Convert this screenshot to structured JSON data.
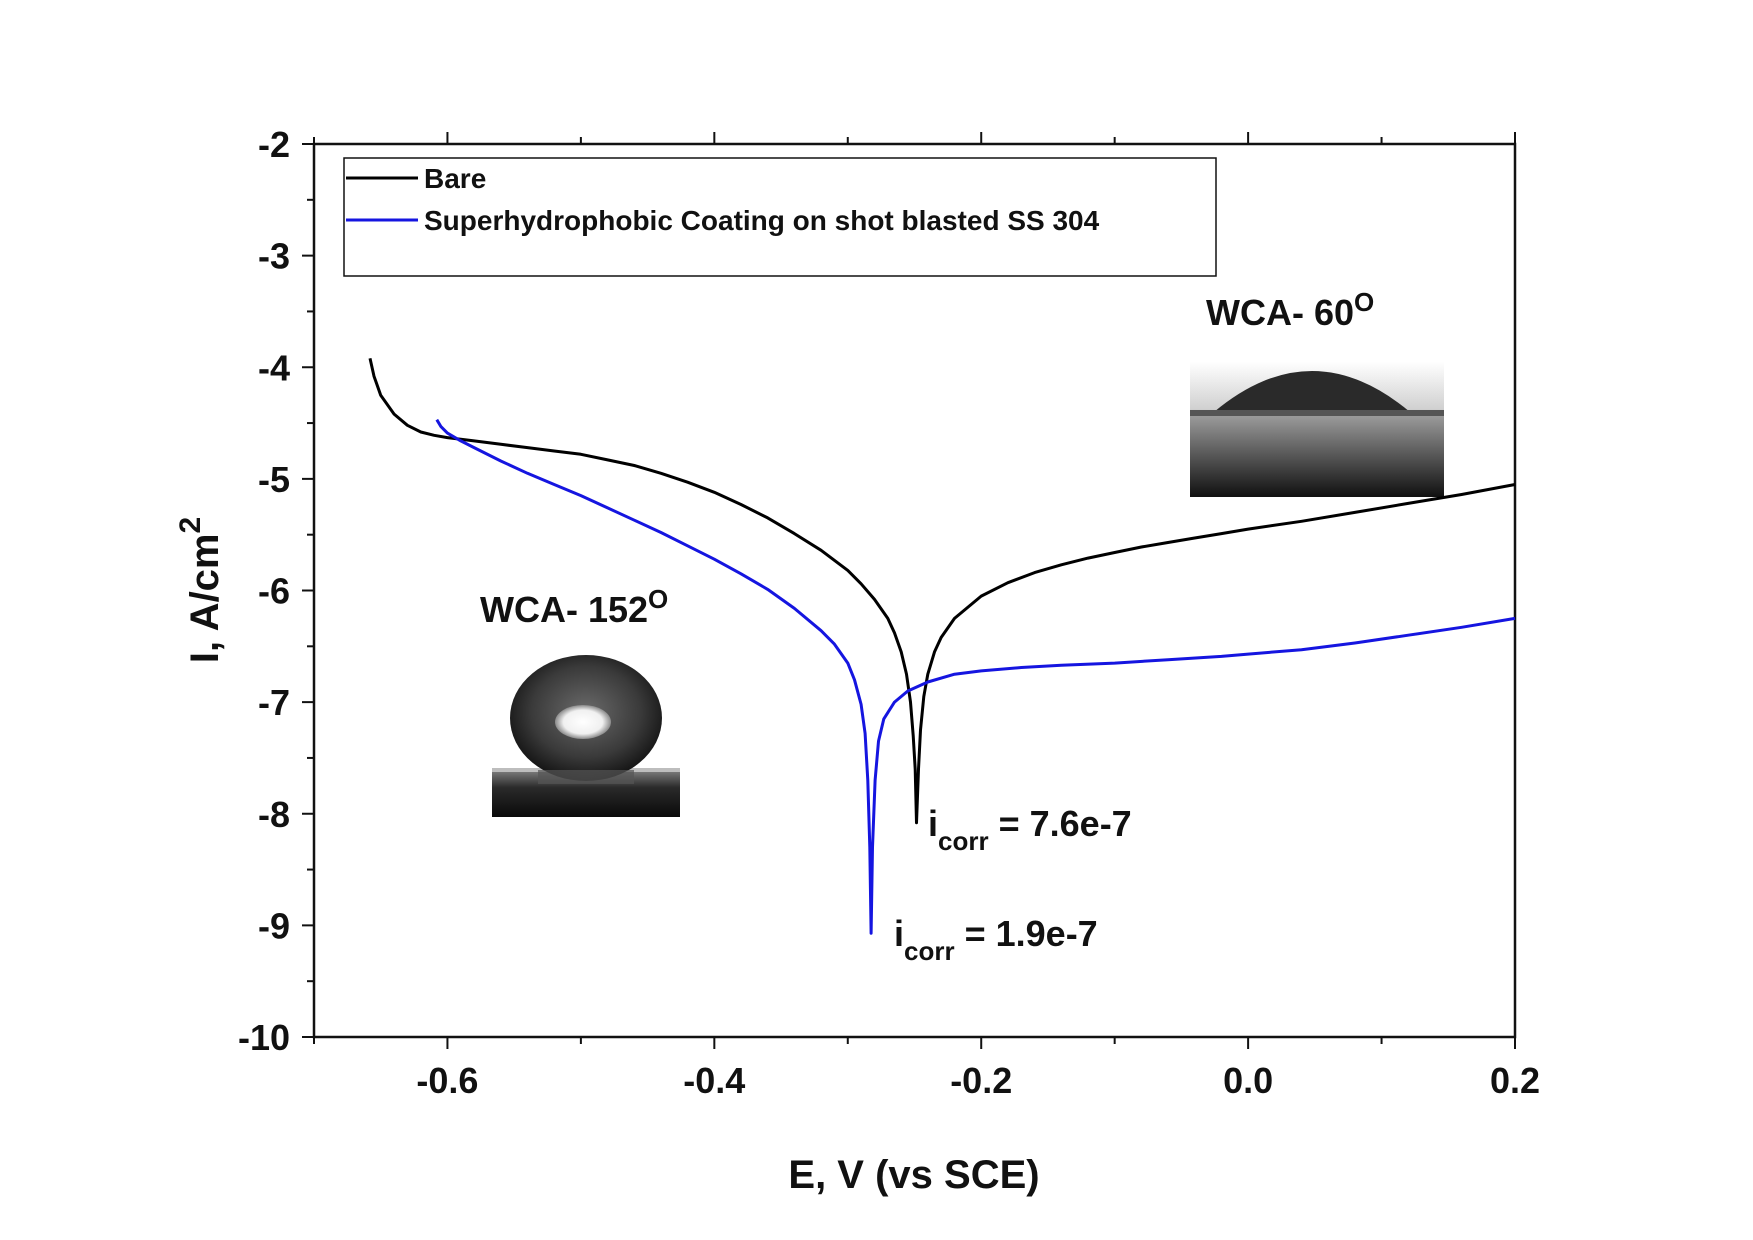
{
  "chart_data": {
    "type": "line",
    "xlabel": "E, V (vs SCE)",
    "ylabel_main": "I, A/cm",
    "ylabel_sup": "2",
    "xlim": [
      -0.7,
      0.2
    ],
    "ylim": [
      -10,
      -2
    ],
    "x_ticks": [
      -0.6,
      -0.4,
      -0.2,
      0.0,
      0.2
    ],
    "x_tick_labels": [
      "-0.6",
      "-0.4",
      "-0.2",
      "0.0",
      "0.2"
    ],
    "y_ticks": [
      -10,
      -9,
      -8,
      -7,
      -6,
      -5,
      -4,
      -3,
      -2
    ],
    "y_tick_labels": [
      "-10",
      "-9",
      "-8",
      "-7",
      "-6",
      "-5",
      "-4",
      "-3",
      "-2"
    ],
    "grid": false,
    "legend_position": "top-left",
    "series": [
      {
        "name": "Bare",
        "color": "#000000",
        "points": [
          [
            -0.658,
            -3.92
          ],
          [
            -0.655,
            -4.08
          ],
          [
            -0.65,
            -4.25
          ],
          [
            -0.64,
            -4.42
          ],
          [
            -0.63,
            -4.52
          ],
          [
            -0.62,
            -4.58
          ],
          [
            -0.61,
            -4.61
          ],
          [
            -0.6,
            -4.63
          ],
          [
            -0.58,
            -4.66
          ],
          [
            -0.56,
            -4.69
          ],
          [
            -0.54,
            -4.72
          ],
          [
            -0.52,
            -4.75
          ],
          [
            -0.5,
            -4.78
          ],
          [
            -0.48,
            -4.83
          ],
          [
            -0.46,
            -4.88
          ],
          [
            -0.44,
            -4.95
          ],
          [
            -0.42,
            -5.03
          ],
          [
            -0.4,
            -5.12
          ],
          [
            -0.38,
            -5.23
          ],
          [
            -0.36,
            -5.35
          ],
          [
            -0.34,
            -5.49
          ],
          [
            -0.32,
            -5.64
          ],
          [
            -0.3,
            -5.82
          ],
          [
            -0.29,
            -5.94
          ],
          [
            -0.28,
            -6.08
          ],
          [
            -0.27,
            -6.25
          ],
          [
            -0.265,
            -6.38
          ],
          [
            -0.26,
            -6.55
          ],
          [
            -0.256,
            -6.75
          ],
          [
            -0.253,
            -7.0
          ],
          [
            -0.251,
            -7.3
          ],
          [
            -0.2495,
            -7.6
          ],
          [
            -0.2485,
            -8.08
          ],
          [
            -0.247,
            -7.6
          ],
          [
            -0.2455,
            -7.25
          ],
          [
            -0.243,
            -6.95
          ],
          [
            -0.24,
            -6.75
          ],
          [
            -0.235,
            -6.55
          ],
          [
            -0.23,
            -6.42
          ],
          [
            -0.22,
            -6.25
          ],
          [
            -0.2,
            -6.05
          ],
          [
            -0.18,
            -5.93
          ],
          [
            -0.16,
            -5.84
          ],
          [
            -0.14,
            -5.77
          ],
          [
            -0.12,
            -5.71
          ],
          [
            -0.1,
            -5.66
          ],
          [
            -0.08,
            -5.61
          ],
          [
            -0.06,
            -5.57
          ],
          [
            -0.04,
            -5.53
          ],
          [
            -0.02,
            -5.49
          ],
          [
            0.0,
            -5.45
          ],
          [
            0.04,
            -5.38
          ],
          [
            0.08,
            -5.3
          ],
          [
            0.12,
            -5.22
          ],
          [
            0.16,
            -5.14
          ],
          [
            0.2,
            -5.05
          ]
        ]
      },
      {
        "name": "Superhydrophobic Coating on shot blasted SS 304",
        "color": "#1515e0",
        "points": [
          [
            -0.608,
            -4.47
          ],
          [
            -0.605,
            -4.53
          ],
          [
            -0.6,
            -4.59
          ],
          [
            -0.59,
            -4.66
          ],
          [
            -0.58,
            -4.72
          ],
          [
            -0.56,
            -4.84
          ],
          [
            -0.54,
            -4.95
          ],
          [
            -0.52,
            -5.05
          ],
          [
            -0.5,
            -5.15
          ],
          [
            -0.48,
            -5.26
          ],
          [
            -0.46,
            -5.37
          ],
          [
            -0.44,
            -5.48
          ],
          [
            -0.42,
            -5.6
          ],
          [
            -0.4,
            -5.72
          ],
          [
            -0.38,
            -5.85
          ],
          [
            -0.36,
            -5.99
          ],
          [
            -0.34,
            -6.16
          ],
          [
            -0.32,
            -6.36
          ],
          [
            -0.31,
            -6.48
          ],
          [
            -0.3,
            -6.65
          ],
          [
            -0.295,
            -6.8
          ],
          [
            -0.29,
            -7.02
          ],
          [
            -0.287,
            -7.28
          ],
          [
            -0.285,
            -7.7
          ],
          [
            -0.2835,
            -8.3
          ],
          [
            -0.2825,
            -9.07
          ],
          [
            -0.2815,
            -8.3
          ],
          [
            -0.2795,
            -7.7
          ],
          [
            -0.277,
            -7.35
          ],
          [
            -0.273,
            -7.15
          ],
          [
            -0.265,
            -7.0
          ],
          [
            -0.255,
            -6.9
          ],
          [
            -0.24,
            -6.82
          ],
          [
            -0.22,
            -6.75
          ],
          [
            -0.2,
            -6.72
          ],
          [
            -0.17,
            -6.69
          ],
          [
            -0.14,
            -6.67
          ],
          [
            -0.1,
            -6.65
          ],
          [
            -0.06,
            -6.62
          ],
          [
            -0.02,
            -6.59
          ],
          [
            0.0,
            -6.57
          ],
          [
            0.04,
            -6.53
          ],
          [
            0.08,
            -6.47
          ],
          [
            0.12,
            -6.4
          ],
          [
            0.16,
            -6.33
          ],
          [
            0.2,
            -6.25
          ]
        ]
      }
    ],
    "annotations": [
      {
        "main": "i",
        "sub": "corr",
        "rest": " = 7.6e-7"
      },
      {
        "main": "i",
        "sub": "corr",
        "rest": " = 1.9e-7"
      },
      {
        "main": "WCA- 152",
        "sup": "O"
      },
      {
        "main": "WCA- 60",
        "sup": "O"
      }
    ]
  }
}
